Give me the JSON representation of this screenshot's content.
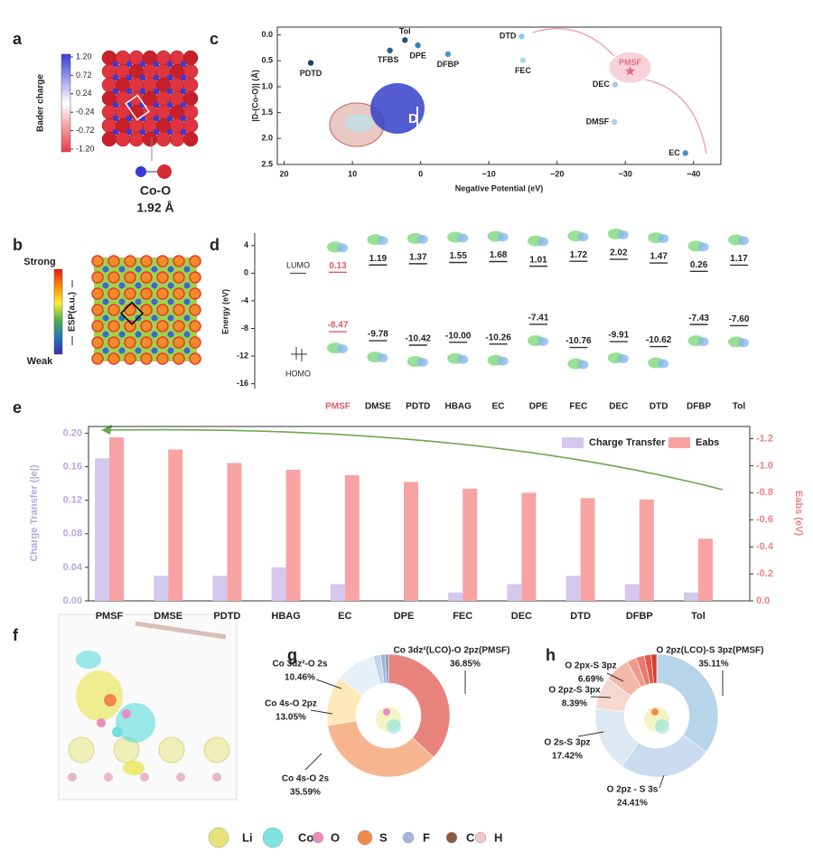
{
  "panel_labels": [
    "a",
    "b",
    "c",
    "d",
    "e",
    "f",
    "g",
    "h"
  ],
  "chart_data": [
    {
      "type": "colorbar",
      "ylabel": "Bader charge",
      "ylim": [
        -1.2,
        1.2
      ],
      "yticks": [
        {
          "value": 1.2,
          "label": "1.20"
        },
        0.72,
        0.24,
        -0.24,
        -0.72,
        {
          "value": -1.2,
          "label": "-1.20"
        }
      ],
      "colors": [
        "#3a3ad8",
        "#ffffff",
        "#ea3b48"
      ],
      "annotations": [
        "Co-O",
        "1.92 Å"
      ]
    },
    {
      "type": "colorbar",
      "ylabel": "ESP(a.u.)",
      "colors": [
        "#e41a1c",
        "#ff8c00",
        "#ffee33",
        "#4daf4a",
        "#1f78b4",
        "#3d2bb0"
      ],
      "annotations": [
        "Strong",
        "Weak"
      ]
    },
    {
      "type": "scatter",
      "xlabel": "Negative Potential (eV)",
      "ylabel": "|D-(Co-O)| (Å)",
      "labels": [
        "PDTD",
        "Tol",
        "TFBS",
        "DPE",
        "DFBP",
        "DTD",
        "FEC",
        "PMSF",
        "DEC",
        "DMSF",
        "EC"
      ],
      "x": [
        16.1,
        2.3,
        4.5,
        0.4,
        -4,
        -14.8,
        -15,
        -30.7,
        -28.5,
        -28.4,
        -38.8
      ],
      "values": [
        0.54,
        0.1,
        0.3,
        0.2,
        0.37,
        0.03,
        0.49,
        0.7,
        0.96,
        1.68,
        2.28
      ],
      "colors": [
        "#1f3f6e",
        "#1f4f7e",
        "#2c5f8a",
        "#3b7fb0",
        "#4a95c4",
        "#8cc8e8",
        "#a8d8ee",
        "#e86a8a",
        "#a8c8e8",
        "#a8d0ee",
        "#4a90c8"
      ],
      "markers": [
        "circle",
        "circle",
        "circle",
        "circle",
        "circle",
        "circle",
        "circle",
        "star",
        "circle",
        "circle",
        "circle"
      ],
      "xlim": [
        21,
        -44
      ],
      "ylim": [
        2.5,
        -0.15
      ],
      "xticks": [
        20,
        10,
        0,
        {
          "value": -10,
          "label": "−10"
        },
        {
          "value": -20,
          "label": "−20"
        },
        {
          "value": -30,
          "label": "−30"
        },
        {
          "value": -40,
          "label": "−40"
        }
      ],
      "yticks": [
        {
          "value": 0,
          "label": "0.0"
        },
        0.5,
        {
          "value": 1,
          "label": "1.0"
        },
        1.5,
        {
          "value": 2,
          "label": "2.0"
        },
        2.5
      ],
      "annotations": [
        "D"
      ]
    },
    {
      "type": "energy-levels",
      "ylabel": "Energy (eV)",
      "categories": [
        "PMSF",
        "DMSE",
        "PDTD",
        "HBAG",
        "EC",
        "DPE",
        "FEC",
        "DEC",
        "DTD",
        "DFBP",
        "Tol"
      ],
      "series": [
        {
          "name": "LUMO",
          "values": [
            0.13,
            1.19,
            1.37,
            1.55,
            1.68,
            1.01,
            1.72,
            2.02,
            1.47,
            0.26,
            1.17
          ]
        },
        {
          "name": "HOMO",
          "values": [
            -8.47,
            -9.78,
            -10.42,
            -10.0,
            -10.26,
            -7.41,
            -10.76,
            -9.91,
            -10.62,
            -7.43,
            -7.6
          ],
          "value_labels": [
            "-8.47",
            "-9.78",
            "-10.42",
            "-10.00",
            "-10.26",
            "-7.41",
            "-10.76",
            "-9.91",
            "-10.62",
            "-7.43",
            "-7.60"
          ]
        }
      ],
      "ylim": [
        -16.7,
        5.8
      ],
      "yticks": [
        4,
        0,
        -4,
        -8,
        -12,
        -16
      ],
      "highlight": "PMSF",
      "highlight_color": "#e05a6a"
    },
    {
      "type": "bar",
      "categories": [
        "PMSF",
        "DMSE",
        "PDTD",
        "HBAG",
        "EC",
        "DPE",
        "FEC",
        "DEC",
        "DTD",
        "DFBP",
        "Tol"
      ],
      "series": [
        {
          "name": "Charge Transfer",
          "color": "#d4c8ee",
          "values": [
            0.17,
            0.03,
            0.03,
            0.04,
            0.02,
            0,
            0.01,
            0.02,
            0.03,
            0.02,
            0.01
          ]
        },
        {
          "name": "Eabs",
          "color": "#f8a3a3",
          "axis": "y2",
          "values": [
            -1.21,
            -1.12,
            -1.02,
            -0.97,
            -0.93,
            -0.88,
            -0.83,
            -0.8,
            -0.76,
            -0.75,
            -0.46
          ]
        }
      ],
      "ylabel": "Charge Transfer (|e|)",
      "y2label": "Eabs (eV)",
      "ylim": [
        0,
        0.208
      ],
      "yticks": [
        {
          "value": 0,
          "label": "0.00"
        },
        0.04,
        0.08,
        0.12,
        0.16,
        {
          "value": 0.2,
          "label": "0.20"
        }
      ],
      "y2lim": [
        0,
        -1.29
      ],
      "y2ticks": [
        {
          "value": 0,
          "label": "0.0"
        },
        -0.2,
        -0.4,
        -0.6,
        -0.8,
        {
          "value": -1,
          "label": "-1.0"
        },
        -1.2
      ],
      "legend": "upper right"
    },
    {
      "type": "pie",
      "categories": [
        "Co 3dz²(LCO)-O 2pz(PMSF)",
        "Co 4s-O 2s",
        "Co 4s-O 2pz",
        "Co 3dz²-O 2s",
        null,
        null,
        null
      ],
      "values": [
        36.85,
        35.59,
        13.05,
        10.46,
        2.0,
        1.2,
        0.85
      ],
      "value_labels": [
        "36.85%",
        "35.59%",
        "13.05%",
        "10.46%",
        null,
        null,
        null
      ],
      "colors": [
        "#e8837d",
        "#f7b58f",
        "#fde8b8",
        "#e6f0f8",
        "#c5d6e8",
        "#9bb7d6",
        "#7698c2"
      ]
    },
    {
      "type": "pie",
      "categories": [
        "O 2pz(LCO)-S 3pz(PMSF)",
        "O 2pz - S 3s",
        "O 2s-S 3pz",
        "O 2pz-S 3px",
        "O 2px-S 3pz",
        null,
        null,
        null,
        null
      ],
      "values": [
        35.11,
        24.41,
        17.42,
        8.39,
        6.69,
        2.5,
        2.2,
        1.8,
        1.48
      ],
      "value_labels": [
        "35.11%",
        "24.41%",
        "17.42%",
        "8.39%",
        "6.69%",
        null,
        null,
        null,
        null
      ],
      "colors": [
        "#b8d4e8",
        "#c9dcef",
        "#dde8f3",
        "#f6d8d0",
        "#f3b8a8",
        "#ee9a88",
        "#e77a6a",
        "#e05a4a",
        "#d83a30"
      ]
    }
  ],
  "element_legend": [
    {
      "label": "Li",
      "color": "#e6e27a"
    },
    {
      "label": "Co",
      "color": "#7fe3e0"
    },
    {
      "label": "O",
      "color": "#e98cc0"
    },
    {
      "label": "S",
      "color": "#f08a4b"
    },
    {
      "label": "F",
      "color": "#a9b2dc"
    },
    {
      "label": "C",
      "color": "#8a5a44"
    },
    {
      "label": "H",
      "color": "#f3c6c6"
    }
  ]
}
